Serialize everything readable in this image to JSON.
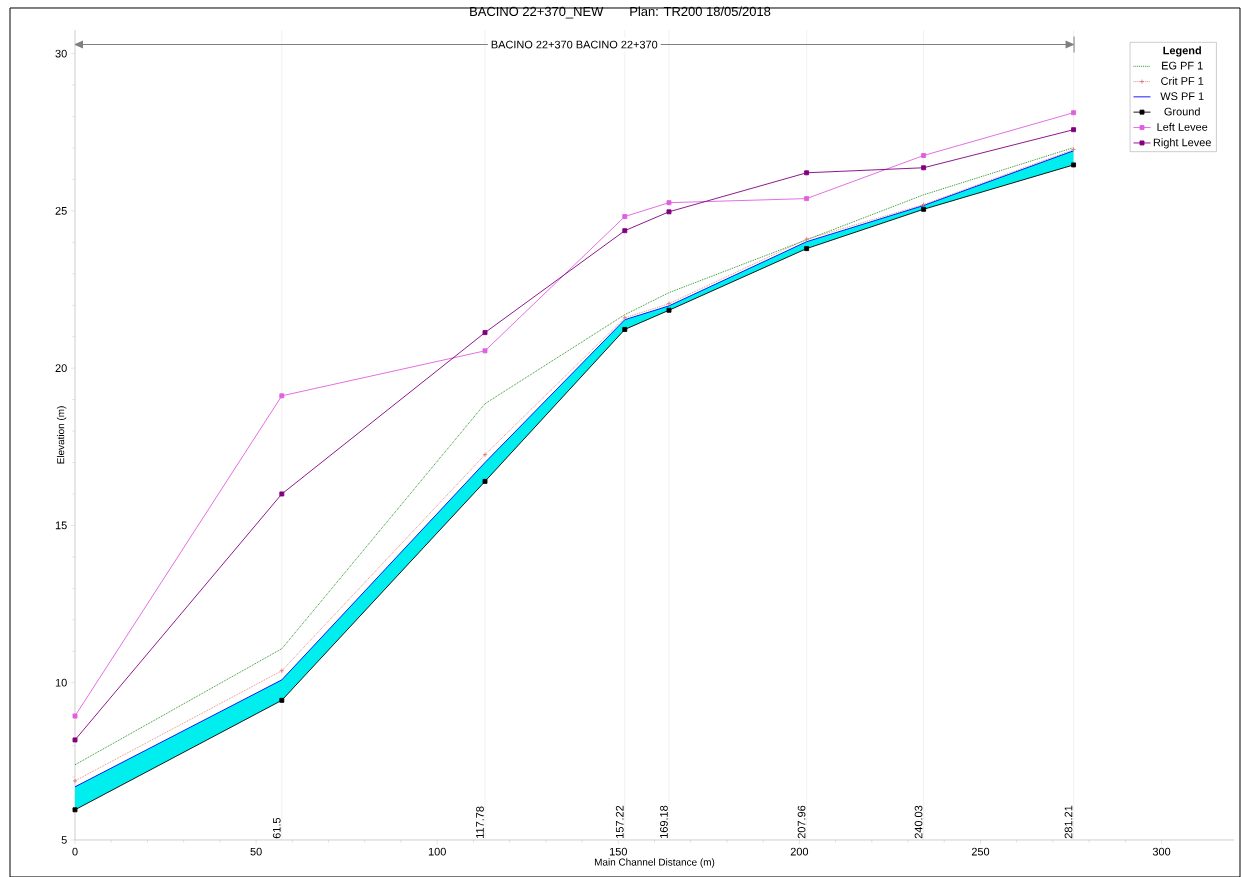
{
  "chart_data": {
    "type": "line",
    "title": "BACINO 22+370_NEW",
    "subtitle": "Plan: TR200    18/05/2018",
    "xlabel": "Main Channel Distance (m)",
    "ylabel": "Elevation (m)",
    "legend_title": "Legend",
    "annotations": [
      "BACINO 22+370 BACINO 22+370",
      {
        "text": "61.5",
        "x": 57.1,
        "y": 5
      },
      {
        "text": "117.78",
        "x": 113.2,
        "y": 5
      },
      {
        "text": "157.22",
        "x": 151.8,
        "y": 5
      },
      {
        "text": "169.18",
        "x": 164.0,
        "y": 5
      },
      {
        "text": "207.96",
        "x": 202.0,
        "y": 5
      },
      {
        "text": "240.03",
        "x": 234.3,
        "y": 5
      },
      {
        "text": "281.21",
        "x": 275.7,
        "y": 5
      }
    ],
    "x": [
      0,
      57.1,
      113.2,
      151.8,
      164.0,
      202.0,
      234.3,
      275.7
    ],
    "series": [
      {
        "name": "EG  PF 1",
        "color": "#008000",
        "line_style": "dotted",
        "marker": "none",
        "values": [
          7.39,
          11.08,
          18.87,
          21.7,
          22.4,
          24.08,
          25.51,
          27.01
        ]
      },
      {
        "name": "Crit  PF 1",
        "color": "#e07878",
        "line_style": "dotted",
        "marker": "cross",
        "values": [
          6.88,
          10.38,
          17.25,
          21.6,
          22.05,
          24.1,
          25.2,
          26.95
        ]
      },
      {
        "name": "WS  PF 1",
        "color": "#0000ff",
        "line_style": "solid",
        "marker": "none",
        "values": [
          6.69,
          10.09,
          17.0,
          21.54,
          21.98,
          24.02,
          25.17,
          26.91
        ],
        "lower": [
          5.96,
          9.44,
          16.4,
          21.23,
          21.84,
          23.8,
          25.05,
          26.46
        ],
        "upper": [
          6.69,
          10.09,
          17.0,
          21.54,
          21.98,
          24.02,
          25.17,
          26.91
        ]
      },
      {
        "name": "Ground",
        "color": "#000000",
        "line_style": "solid",
        "marker": "square",
        "values": [
          5.96,
          9.44,
          16.4,
          21.23,
          21.84,
          23.8,
          25.05,
          26.46
        ]
      },
      {
        "name": "Left Levee",
        "color": "#e060e0",
        "line_style": "solid",
        "marker": "square",
        "values": [
          8.94,
          19.12,
          20.55,
          24.82,
          25.26,
          25.39,
          26.76,
          28.12
        ]
      },
      {
        "name": "Right Levee",
        "color": "#800080",
        "line_style": "solid",
        "marker": "square",
        "values": [
          8.18,
          16.0,
          21.13,
          24.37,
          24.97,
          26.21,
          26.37,
          27.58
        ]
      }
    ],
    "xlim": [
      0,
      320
    ],
    "ylim": [
      5,
      30.75
    ],
    "xticks": [
      0,
      50,
      100,
      150,
      200,
      250,
      300
    ],
    "yticks": [
      5,
      10,
      15,
      20,
      25,
      30
    ],
    "ref_lines": [
      {
        "axis": "x",
        "value": 57.1,
        "color": "#dcdcdc"
      },
      {
        "axis": "x",
        "value": 113.2,
        "color": "#dcdcdc"
      },
      {
        "axis": "x",
        "value": 151.8,
        "color": "#dcdcdc"
      },
      {
        "axis": "x",
        "value": 164.0,
        "color": "#dcdcdc"
      },
      {
        "axis": "x",
        "value": 202.0,
        "color": "#dcdcdc"
      },
      {
        "axis": "x",
        "value": 234.3,
        "color": "#dcdcdc"
      },
      {
        "axis": "x",
        "value": 275.7,
        "color": "#dcdcdc"
      }
    ],
    "legend": "top right",
    "grid": false
  }
}
